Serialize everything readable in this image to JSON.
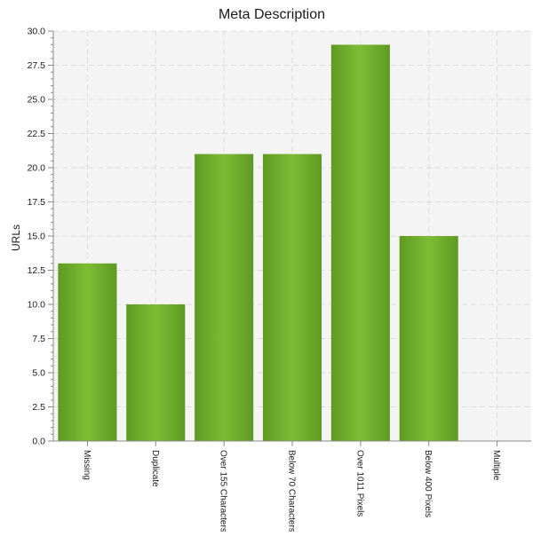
{
  "chart_data": {
    "type": "bar",
    "title": "Meta Description",
    "ylabel": "URLs",
    "xlabel": "",
    "categories": [
      "Missing",
      "Duplicate",
      "Over 155 Characters",
      "Below 70 Characters",
      "Over 1011 Pixels",
      "Below 400 Pixels",
      "Multiple"
    ],
    "values": [
      13,
      10,
      21,
      21,
      29,
      15,
      0
    ],
    "ylim": [
      0,
      30
    ],
    "yticks": [
      "0.0",
      "2.5",
      "5.0",
      "7.5",
      "10.0",
      "12.5",
      "15.0",
      "17.5",
      "20.0",
      "22.5",
      "25.0",
      "27.5",
      "30.0"
    ],
    "grid": true,
    "legend": "none",
    "colors": {
      "bar": "#6eb02c",
      "bar_light": "#7cbd34",
      "bar_dark": "#5e9a22",
      "plot_bg": "#f4f4f4",
      "grid": "#dcdcdc",
      "axis": "#8a8a8a",
      "text": "#1a1a1a"
    }
  }
}
